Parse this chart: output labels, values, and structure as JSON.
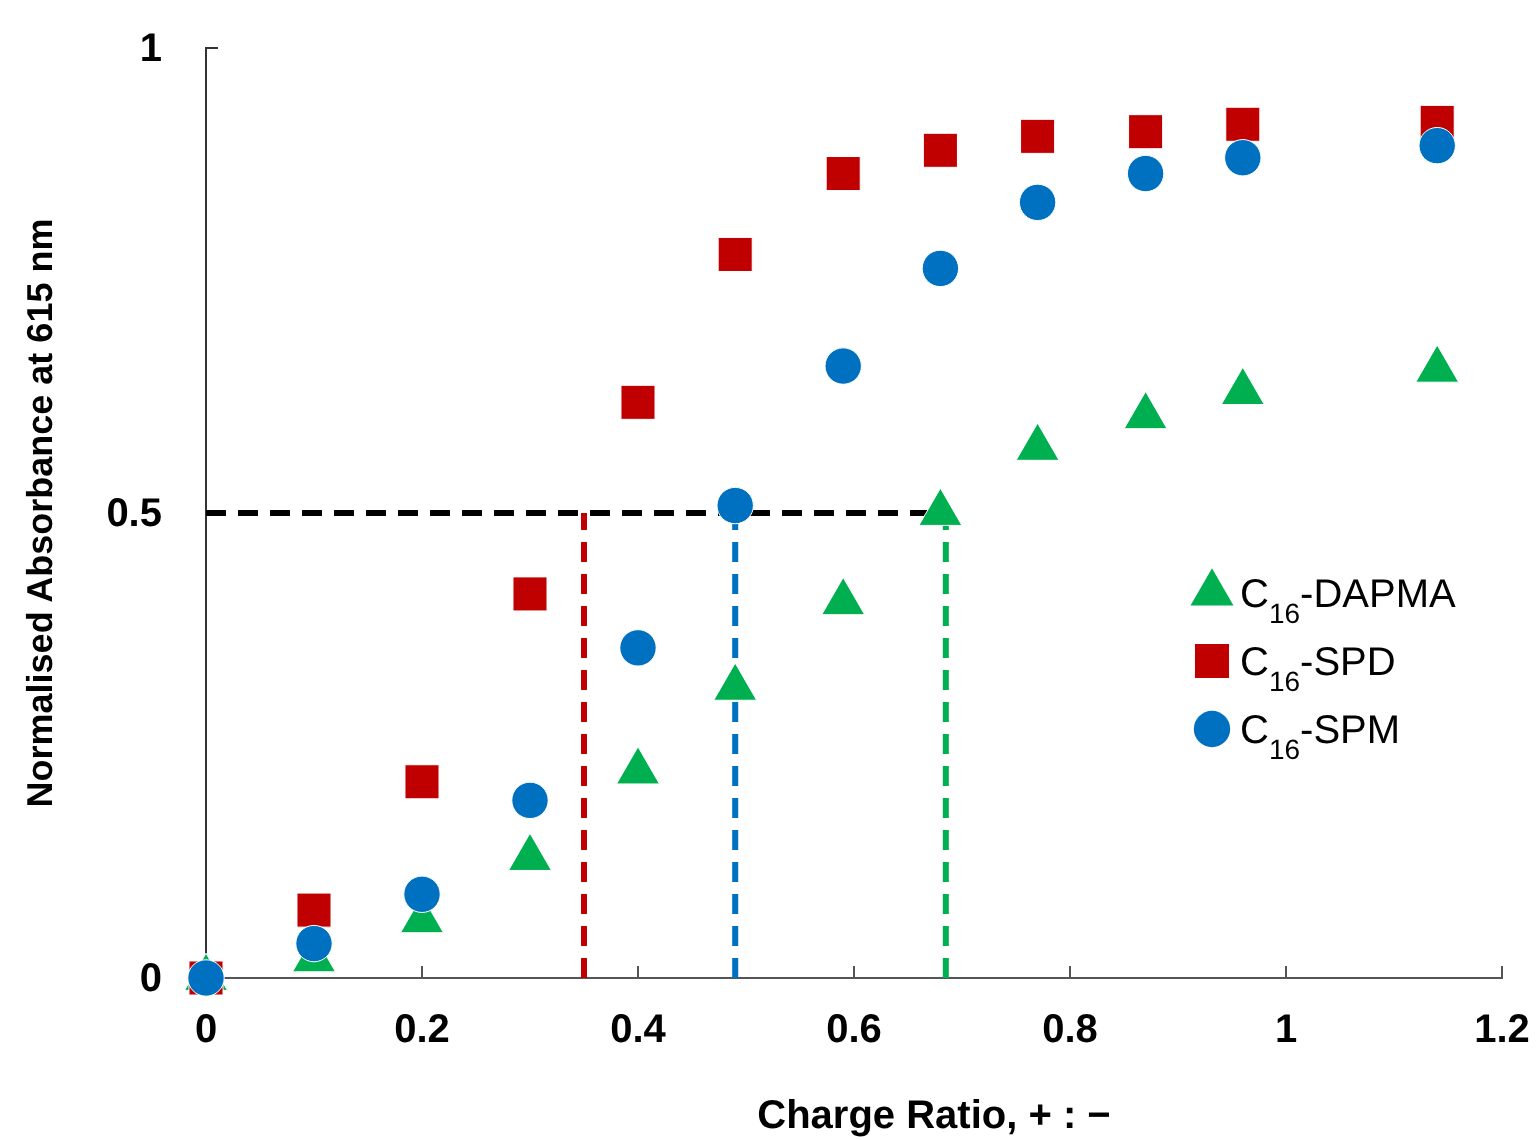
{
  "chart_data": {
    "type": "scatter",
    "xlabel": "Charge Ratio, + : −",
    "ylabel": "Normalised Absorbance at 615 nm",
    "x": [
      0,
      0.1,
      0.2,
      0.3,
      0.4,
      0.49,
      0.59,
      0.68,
      0.77,
      0.87,
      0.96,
      1.14
    ],
    "series": [
      {
        "name": "C$_{16}$-DAPMA",
        "color": "#00b050",
        "marker": "triangle",
        "values": [
          0,
          0.02,
          0.062,
          0.129,
          0.222,
          0.312,
          0.404,
          0.5,
          0.57,
          0.604,
          0.63,
          0.654
        ]
      },
      {
        "name": "C$_{16}$-SPD",
        "color": "#c00000",
        "marker": "square",
        "values": [
          0,
          0.073,
          0.211,
          0.413,
          0.619,
          0.778,
          0.865,
          0.89,
          0.905,
          0.91,
          0.918,
          0.92
        ]
      },
      {
        "name": "C$_{16}$-SPM",
        "color": "#0070c0",
        "marker": "circle",
        "values": [
          0,
          0.037,
          0.09,
          0.191,
          0.355,
          0.508,
          0.658,
          0.763,
          0.834,
          0.865,
          0.882,
          0.895
        ]
      }
    ],
    "xlim": [
      0,
      1.2
    ],
    "xticks": [
      0,
      0.2,
      0.4,
      0.6,
      0.8,
      1,
      1.2
    ],
    "ylim": [
      0,
      1
    ],
    "yticks": [
      0,
      0.5,
      1
    ],
    "ref_lines": [
      {
        "axis": "y",
        "value": 0.5,
        "color": "#000000",
        "line_style": "dashed"
      },
      {
        "axis": "x",
        "value": 0.35,
        "color": "#c00000",
        "line_style": "dashed"
      },
      {
        "axis": "x",
        "value": 0.49,
        "color": "#0070c0",
        "line_style": "dashed"
      },
      {
        "axis": "x",
        "value": 0.685,
        "color": "#00b050",
        "line_style": "dashed"
      }
    ],
    "grid": false,
    "legend": "right"
  }
}
